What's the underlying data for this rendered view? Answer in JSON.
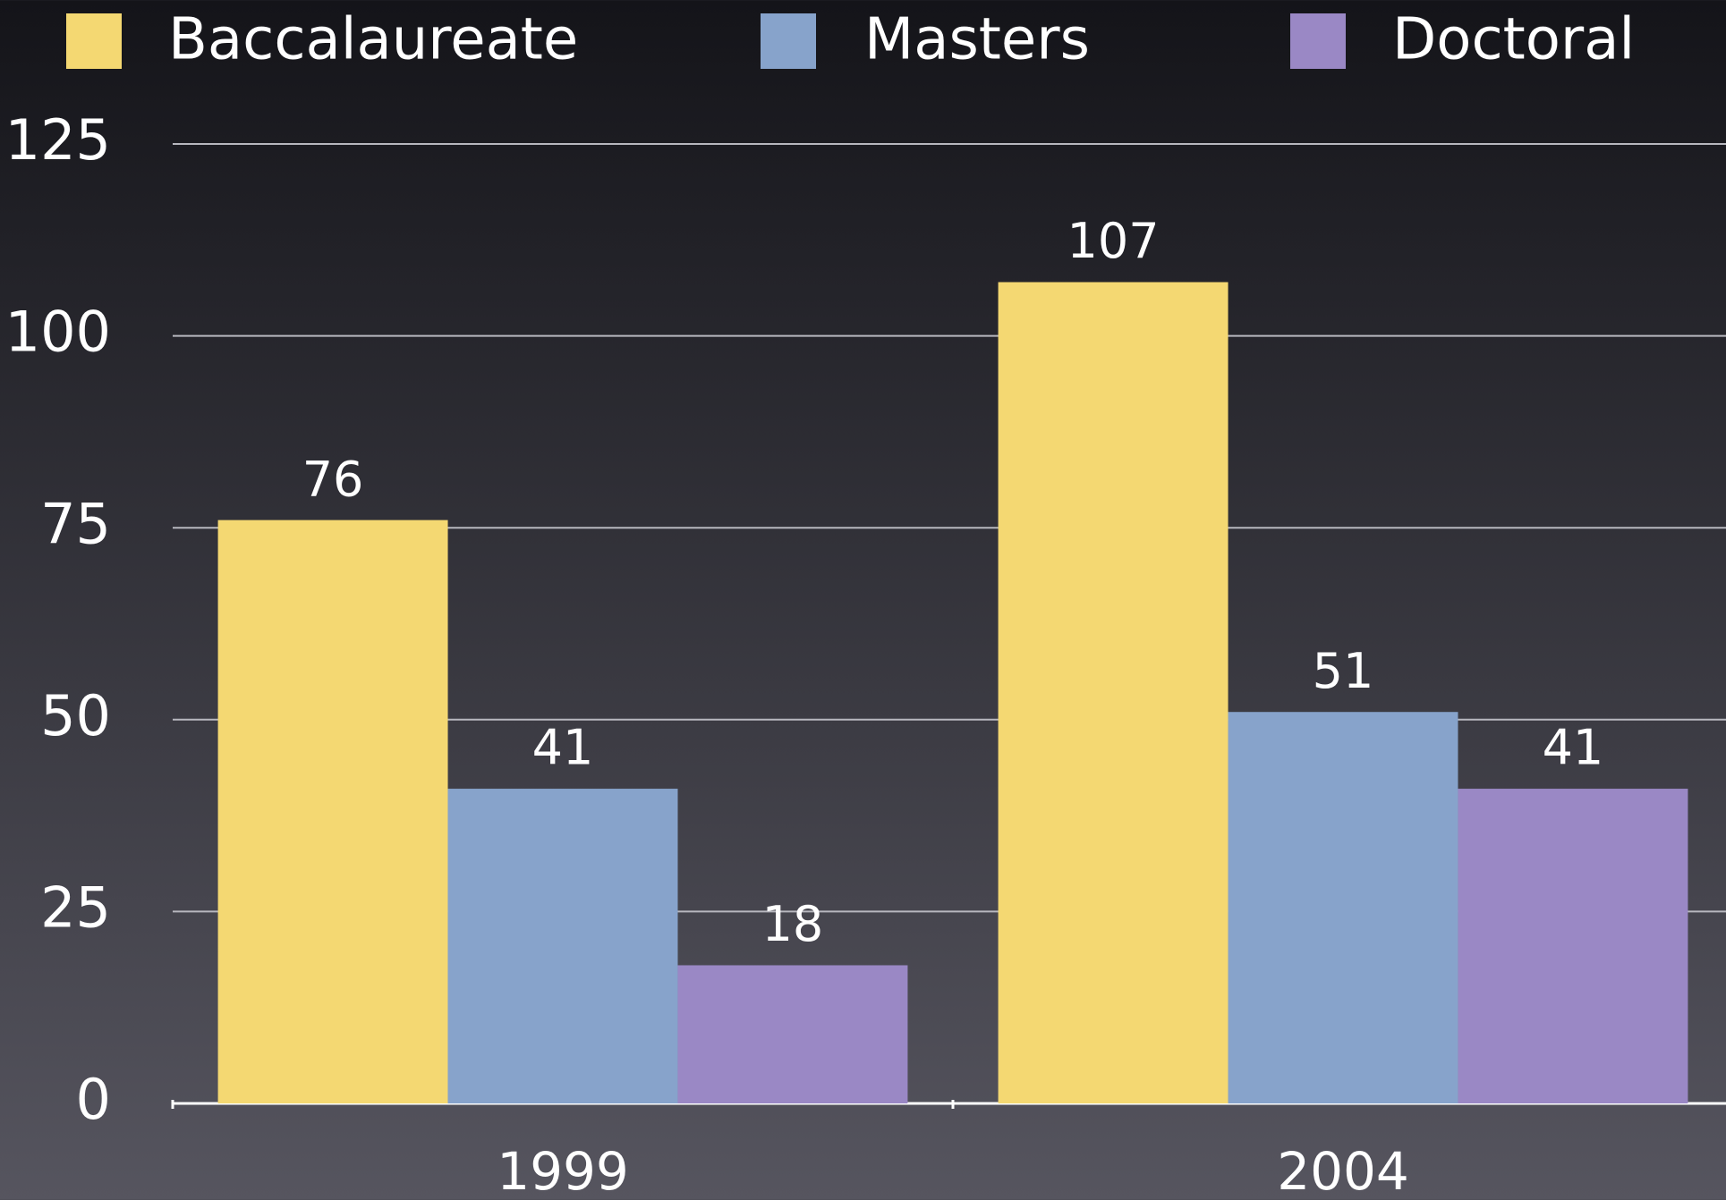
{
  "chart_data": {
    "type": "bar",
    "categories": [
      "1999",
      "2004"
    ],
    "series": [
      {
        "name": "Baccalaureate",
        "color": "#f4d872",
        "values": [
          76,
          107
        ]
      },
      {
        "name": "Masters",
        "color": "#87a3cb",
        "values": [
          41,
          51
        ]
      },
      {
        "name": "Doctoral",
        "color": "#9a88c5",
        "values": [
          18,
          41
        ]
      }
    ],
    "ylim": [
      0,
      125
    ],
    "yticks": [
      0,
      25,
      50,
      75,
      100,
      125
    ],
    "grid": true,
    "legend": "top"
  }
}
